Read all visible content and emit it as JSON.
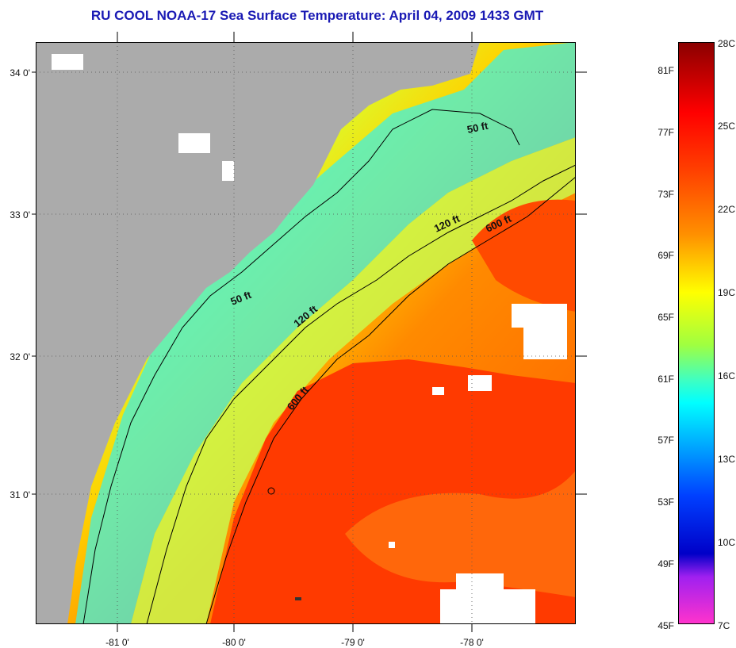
{
  "title": "RU COOL  NOAA-17  Sea Surface Temperature:  April 04, 2009 1433 GMT",
  "map": {
    "lat_labels": [
      "34 0'",
      "33 0'",
      "32 0'",
      "31 0'"
    ],
    "lon_labels": [
      "-81 0'",
      "-80 0'",
      "-79 0'",
      "-78 0'"
    ],
    "contour_labels": [
      "50 ft",
      "50 ft",
      "120 ft",
      "120 ft",
      "600 ft",
      "600 ft"
    ]
  },
  "colorbar": {
    "fahrenheit_labels": [
      "81F",
      "77F",
      "73F",
      "69F",
      "65F",
      "61F",
      "57F",
      "53F",
      "49F",
      "45F"
    ],
    "celsius_labels": [
      "28C",
      "25C",
      "22C",
      "19C",
      "16C",
      "13C",
      "10C",
      "7C"
    ],
    "colors": {
      "top": "#8b0000",
      "red": "#ff2a00",
      "orange": "#ff8c00",
      "yellow": "#ffff00",
      "green": "#a0ff40",
      "cyan": "#00ffff",
      "blue": "#0040ff",
      "navy": "#0000c8",
      "purple": "#a020f0",
      "magenta": "#ff33cc"
    }
  }
}
